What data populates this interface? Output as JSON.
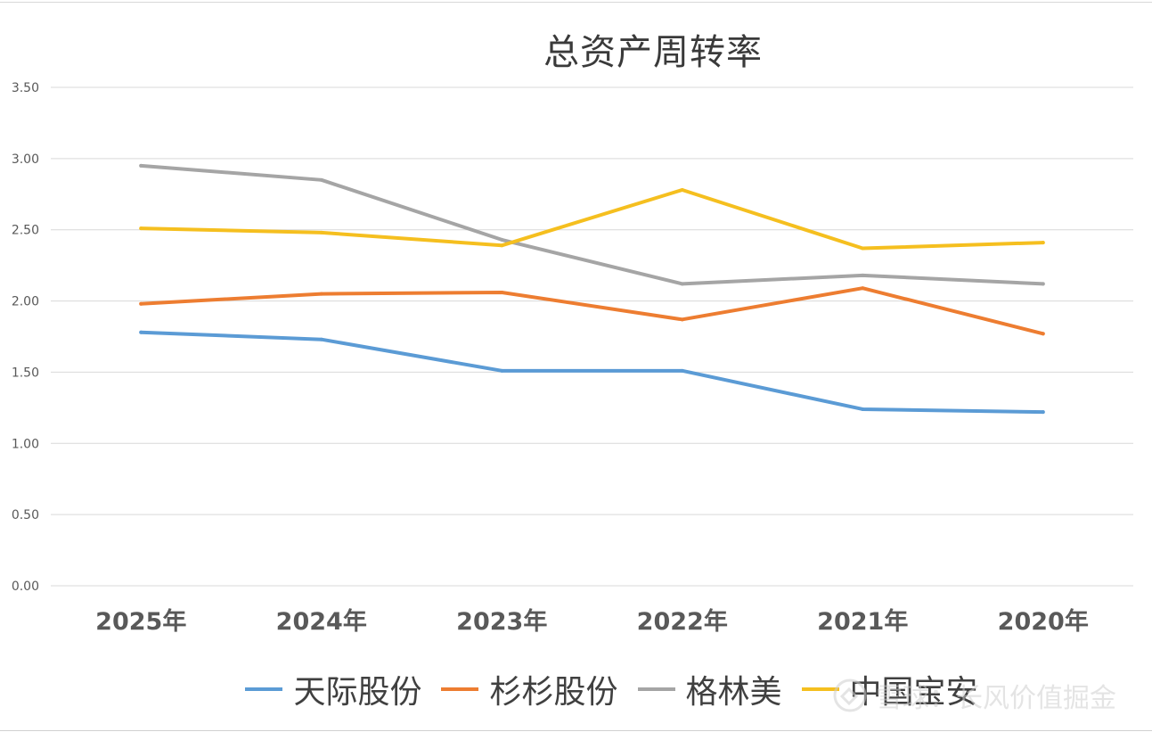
{
  "chart_data": {
    "type": "line",
    "title": "总资产周转率",
    "xlabel": "",
    "ylabel": "",
    "ylim": [
      0,
      3.5
    ],
    "yticks": [
      "0.00",
      "0.50",
      "1.00",
      "1.50",
      "2.00",
      "2.50",
      "3.00",
      "3.50"
    ],
    "ytick_values": [
      0,
      0.5,
      1.0,
      1.5,
      2.0,
      2.5,
      3.0,
      3.5
    ],
    "categories": [
      "2025年",
      "2024年",
      "2023年",
      "2022年",
      "2021年",
      "2020年"
    ],
    "grid": true,
    "legend_position": "bottom",
    "series": [
      {
        "name": "天际股份",
        "color": "#5b9bd5",
        "values": [
          1.78,
          1.73,
          1.51,
          1.51,
          1.24,
          1.22
        ]
      },
      {
        "name": "杉杉股份",
        "color": "#ed7d31",
        "values": [
          1.98,
          2.05,
          2.06,
          1.87,
          2.09,
          1.77
        ]
      },
      {
        "name": "格林美",
        "color": "#a5a5a5",
        "values": [
          2.95,
          2.85,
          2.43,
          2.12,
          2.18,
          2.12
        ]
      },
      {
        "name": "中国宝安",
        "color": "#f5bf1f",
        "values": [
          2.51,
          2.48,
          2.39,
          2.78,
          2.37,
          2.41
        ]
      }
    ]
  },
  "watermark": {
    "text": "雪球：长风价值掘金"
  }
}
